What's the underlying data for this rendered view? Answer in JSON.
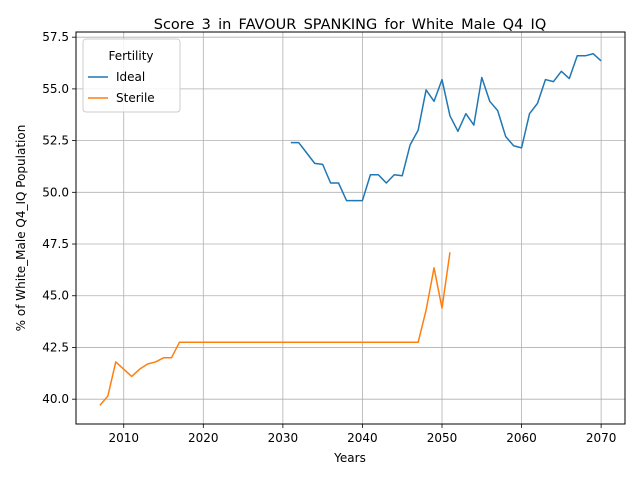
{
  "chart_data": {
    "type": "line",
    "title": "Score_3_in_FAVOUR_SPANKING_for_White_Male_Q4_IQ",
    "xlabel": "Years",
    "ylabel": "% of White_Male Q4_IQ Population",
    "xlim": [
      2004,
      2073
    ],
    "ylim": [
      38.8,
      57.75
    ],
    "xticks": [
      2010,
      2020,
      2030,
      2040,
      2050,
      2060,
      2070
    ],
    "yticks": [
      40.0,
      42.5,
      45.0,
      47.5,
      50.0,
      52.5,
      55.0,
      57.5
    ],
    "xtick_labels": [
      "2010",
      "2020",
      "2030",
      "2040",
      "2050",
      "2060",
      "2070"
    ],
    "ytick_labels": [
      "40.0",
      "42.5",
      "45.0",
      "47.5",
      "50.0",
      "52.5",
      "55.0",
      "57.5"
    ],
    "grid": true,
    "legend": {
      "title": "Fertility",
      "placement": "top-left"
    },
    "series": [
      {
        "name": "Ideal",
        "color": "#1f77b4",
        "x": [
          2031,
          2032,
          2033,
          2034,
          2035,
          2036,
          2037,
          2038,
          2039,
          2040,
          2041,
          2042,
          2043,
          2044,
          2045,
          2046,
          2047,
          2048,
          2049,
          2050,
          2051,
          2052,
          2053,
          2054,
          2055,
          2056,
          2057,
          2058,
          2059,
          2060,
          2061,
          2062,
          2063,
          2064,
          2065,
          2066,
          2067,
          2068,
          2069,
          2070
        ],
        "y": [
          52.4,
          52.4,
          51.9,
          51.4,
          51.35,
          50.45,
          50.45,
          49.6,
          49.6,
          49.6,
          50.85,
          50.85,
          50.45,
          50.85,
          50.8,
          52.3,
          53.0,
          54.95,
          54.4,
          55.45,
          53.7,
          52.95,
          53.8,
          53.25,
          55.55,
          54.4,
          53.95,
          52.7,
          52.25,
          52.15,
          53.8,
          54.3,
          55.45,
          55.35,
          55.85,
          55.5,
          56.6,
          56.6,
          56.7,
          56.35
        ]
      },
      {
        "name": "Sterile",
        "color": "#ff7f0e",
        "x": [
          2007,
          2008,
          2009,
          2010,
          2011,
          2012,
          2013,
          2014,
          2015,
          2016,
          2017,
          2018,
          2019,
          2020,
          2021,
          2022,
          2023,
          2024,
          2025,
          2026,
          2027,
          2028,
          2029,
          2030,
          2031,
          2032,
          2033,
          2034,
          2035,
          2036,
          2037,
          2038,
          2039,
          2040,
          2041,
          2042,
          2043,
          2044,
          2045,
          2046,
          2047,
          2048,
          2049,
          2050,
          2051
        ],
        "y": [
          39.7,
          40.15,
          41.8,
          41.45,
          41.1,
          41.45,
          41.7,
          41.8,
          42.0,
          42.0,
          42.75,
          42.75,
          42.75,
          42.75,
          42.75,
          42.75,
          42.75,
          42.75,
          42.75,
          42.75,
          42.75,
          42.75,
          42.75,
          42.75,
          42.75,
          42.75,
          42.75,
          42.75,
          42.75,
          42.75,
          42.75,
          42.75,
          42.75,
          42.75,
          42.75,
          42.75,
          42.75,
          42.75,
          42.75,
          42.75,
          42.75,
          44.3,
          46.35,
          44.4,
          47.1
        ]
      }
    ]
  }
}
